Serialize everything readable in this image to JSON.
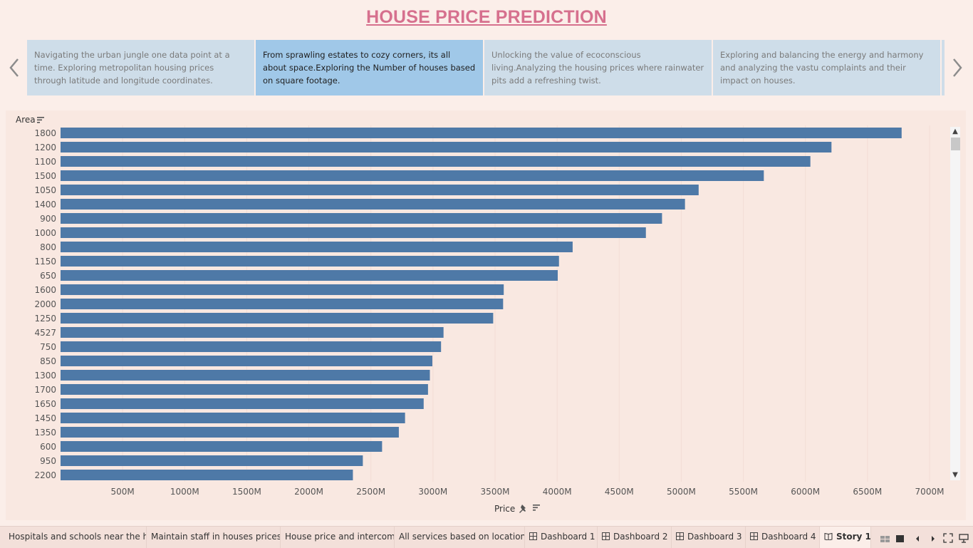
{
  "header": {
    "title": "HOUSE PRICE PREDICTION"
  },
  "story_points": [
    {
      "text": "Navigating the urban jungle one data point at a time. Exploring metropolitan housing prices through latitude and longitude coordinates."
    },
    {
      "text": "From sprawling estates to cozy corners, its all about space.Exploring the Number of houses based on square footage."
    },
    {
      "text": "Unlocking the value of ecoconscious living.Analyzing the housing prices where rainwater pits add a refreshing twist."
    },
    {
      "text": " Exploring and balancing the energy and harmony and analyzing the vastu complaints and their impact on houses."
    }
  ],
  "nav": {
    "prev_icon": "chevron-left-icon",
    "next_icon": "chevron-right-icon"
  },
  "chart_data": {
    "type": "bar",
    "orientation": "horizontal",
    "ylabel": "Area",
    "xlabel": "Price",
    "categories": [
      "1800",
      "1200",
      "1100",
      "1500",
      "1050",
      "1400",
      "900",
      "1000",
      "800",
      "1150",
      "650",
      "1600",
      "2000",
      "1250",
      "4527",
      "750",
      "850",
      "1300",
      "1700",
      "1650",
      "1450",
      "1350",
      "600",
      "950",
      "2200"
    ],
    "values": [
      6775,
      6210,
      6040,
      5665,
      5140,
      5030,
      4845,
      4715,
      4125,
      4015,
      4005,
      3570,
      3565,
      3485,
      3085,
      3065,
      2995,
      2975,
      2960,
      2925,
      2775,
      2725,
      2590,
      2435,
      2355
    ],
    "value_unit": "M",
    "xlim": [
      0,
      7200
    ],
    "xticks": [
      "500M",
      "1000M",
      "1500M",
      "2000M",
      "2500M",
      "3000M",
      "3500M",
      "4000M",
      "4500M",
      "5000M",
      "5500M",
      "6000M",
      "6500M",
      "7000M"
    ],
    "xtick_values": [
      500,
      1000,
      1500,
      2000,
      2500,
      3000,
      3500,
      4000,
      4500,
      5000,
      5500,
      6000,
      6500,
      7000
    ],
    "bar_color": "#4e79a7",
    "grid": "vertical"
  },
  "tabs": [
    {
      "label": "Hospitals and schools near the h...",
      "icon": ""
    },
    {
      "label": "Maintain staff in houses prices",
      "icon": ""
    },
    {
      "label": "House price and intercom",
      "icon": ""
    },
    {
      "label": "All services based on location",
      "icon": ""
    },
    {
      "label": "Dashboard 1",
      "icon": "dashboard-icon"
    },
    {
      "label": "Dashboard 2",
      "icon": "dashboard-icon"
    },
    {
      "label": "Dashboard 3",
      "icon": "dashboard-icon"
    },
    {
      "label": "Dashboard 4",
      "icon": "dashboard-icon"
    },
    {
      "label": "Story 1",
      "icon": "story-icon"
    }
  ],
  "status_icons": [
    "sheet-sorter-icon",
    "tab-view-icon",
    "prev-sheet-icon",
    "next-sheet-icon",
    "fullscreen-icon",
    "presentation-icon"
  ]
}
